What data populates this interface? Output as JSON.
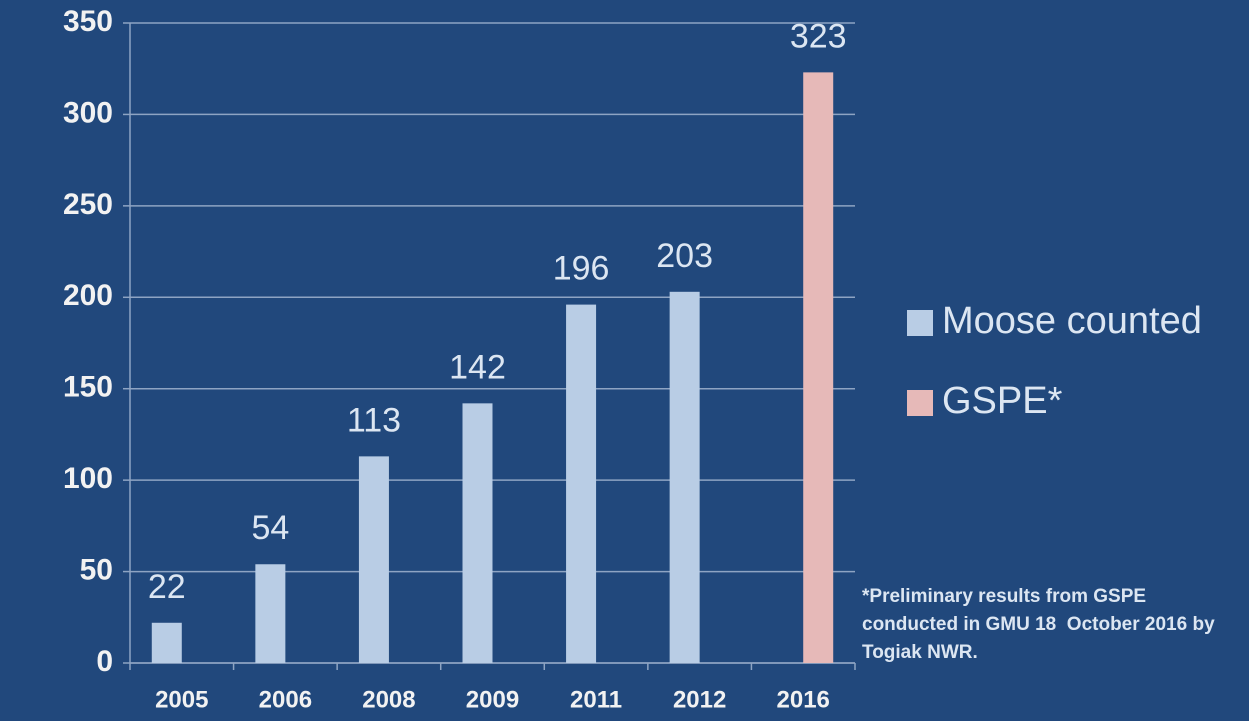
{
  "chart_data": {
    "type": "bar",
    "categories": [
      "2005",
      "2006",
      "2008",
      "2009",
      "2011",
      "2012",
      "2016"
    ],
    "series": [
      {
        "name": "Moose counted",
        "color": "#b9cde5",
        "values": [
          22,
          54,
          113,
          142,
          196,
          203,
          null
        ]
      },
      {
        "name": "GSPE*",
        "color": "#e6b9b8",
        "values": [
          null,
          null,
          null,
          null,
          null,
          null,
          323
        ]
      }
    ],
    "ylim": [
      0,
      350
    ],
    "yticks": [
      0,
      50,
      100,
      150,
      200,
      250,
      300,
      350
    ],
    "grid": true,
    "legend": "right",
    "note": "*Preliminary results from GSPE conducted in GMU 18  October 2016 by Togiak NWR."
  }
}
